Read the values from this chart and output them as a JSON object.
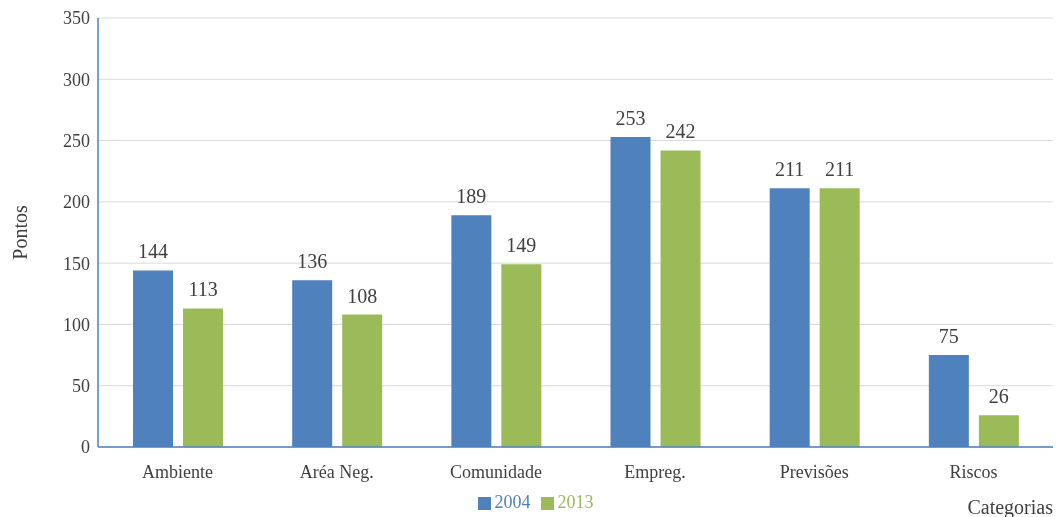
{
  "chart_data": {
    "type": "bar",
    "ylabel": "Pontos",
    "xlabel": "Categorias",
    "categories": [
      "Ambiente",
      "Aréa Neg.",
      "Comunidade",
      "Empreg.",
      "Previsões",
      "Riscos"
    ],
    "series": [
      {
        "name": "2004",
        "color": "#4f81bd",
        "values": [
          144,
          136,
          189,
          253,
          211,
          75
        ]
      },
      {
        "name": "2013",
        "color": "#9bbb59",
        "values": [
          113,
          108,
          149,
          242,
          211,
          26
        ]
      }
    ],
    "ylim": [
      0,
      350
    ],
    "yticks": [
      0,
      50,
      100,
      150,
      200,
      250,
      300,
      350
    ],
    "grid": "y",
    "legend": "bottom",
    "data_labels": true
  }
}
